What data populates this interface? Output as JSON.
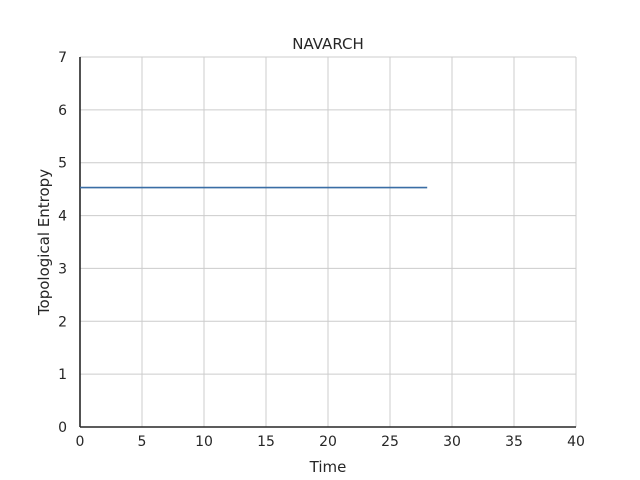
{
  "chart_data": {
    "type": "line",
    "title": "NAVARCH",
    "xlabel": "Time",
    "ylabel": "Topological Entropy",
    "xlim": [
      0,
      40
    ],
    "ylim": [
      0,
      7
    ],
    "xticks": [
      "0",
      "5",
      "10",
      "15",
      "20",
      "25",
      "30",
      "35",
      "40"
    ],
    "yticks": [
      "0",
      "1",
      "2",
      "3",
      "4",
      "5",
      "6",
      "7"
    ],
    "grid": true,
    "series": [
      {
        "color": "#3a6ea5",
        "x": [
          0,
          28
        ],
        "y": [
          4.53,
          4.53
        ]
      }
    ]
  }
}
